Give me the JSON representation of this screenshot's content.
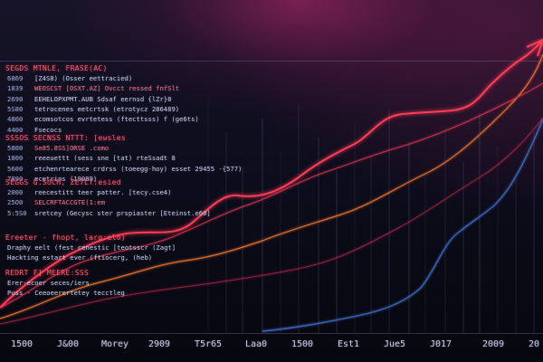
{
  "colors": {
    "red_line": "#ff3b55",
    "orange_line": "#e8702a",
    "blue_line": "#3a64b8",
    "grid": "#7f86c8",
    "title_text": "#ff5a6e",
    "body_text": "#b9c0d8"
  },
  "text_blocks": [
    {
      "title": "SEGDS MTNLE, FRASE(AC)",
      "rows": [
        {
          "key": "6869",
          "text": "[Z4S8) (Osser eettracied)"
        },
        {
          "key": "1839",
          "text": "WEOSCST [OSXT.AZ] Ovcct ressed fnfSlt",
          "hl": true
        },
        {
          "key": "2690",
          "text": "EEHELOPXPMT.AUB  Sdsaf eernsd {lZr}8"
        },
        {
          "key": "5S80",
          "text": "tetrocenes eetcrtsk  (etrotycz 286489)"
        },
        {
          "key": "4800",
          "text": "ecomsotcos  evrtetess  (ftecttsss) f (ge6ts)"
        },
        {
          "key": "4400",
          "text": "Fsecocs"
        }
      ]
    },
    {
      "title": "SSSOS SECNSS NTTT: [ewsles",
      "rows": [
        {
          "key": "5800",
          "text": "Se85.8SS]ORSE .como",
          "hl": true
        },
        {
          "key": "1800",
          "text": "reeeuettt (sess sne [tat) rteSsadt 8"
        },
        {
          "key": "5600",
          "text": "etchenrtearece crdrss  (toeegg-hoy) esset  29455 -{577)"
        },
        {
          "key": "7890",
          "text": "ecetrins  (19089)"
        }
      ]
    },
    {
      "title": "SEGGS G.SUCH, ZETLT:esied",
      "rows": [
        {
          "key": "2000",
          "text": "reecestitt  teer patter. [tecy.cse4)"
        },
        {
          "key": "25O0",
          "text": "SELCRFTACCGTE(1:em",
          "hl": true
        },
        {
          "key": "5:5S0",
          "text": "sretcey  (Gecysc ster prspiaster  [Eteinst.e60]"
        }
      ]
    },
    {
      "title": "Ereeter - fhopt, larg:elo)",
      "rows": [
        {
          "key": "",
          "text": "Draphy  eelt  (fest  cenestic  [teotsscr (Zagt]"
        },
        {
          "key": "",
          "text": "Hackting  estart ever (ftiocerg, (heb)"
        }
      ]
    },
    {
      "title": "REDRT F] MEERE:SSS",
      "rows": [
        {
          "key": "",
          "text": "Erer-ecoer seces/iers"
        },
        {
          "key": "",
          "text": "Puss - Ceeoeerertetey  tecctleg"
        }
      ]
    }
  ],
  "x_tick_labels": [
    "1500",
    "J&00",
    "Morey",
    "2909",
    "T5r65",
    "Laa0",
    "1500",
    "Est1",
    "Jue5",
    "J017",
    "2009",
    "20"
  ]
}
